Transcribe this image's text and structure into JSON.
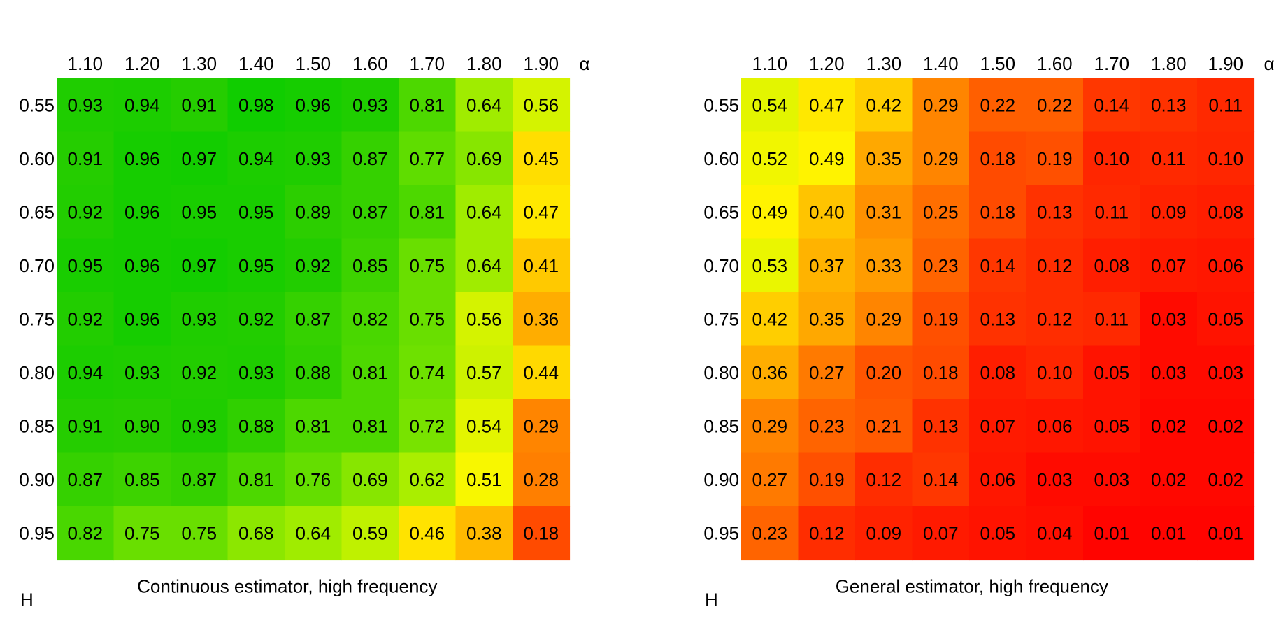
{
  "chart_data": [
    {
      "type": "heatmap",
      "title": "Continuous estimator, high frequency",
      "xlabel": "α",
      "ylabel": "H",
      "x": [
        "1.10",
        "1.20",
        "1.30",
        "1.40",
        "1.50",
        "1.60",
        "1.70",
        "1.80",
        "1.90"
      ],
      "y": [
        "0.55",
        "0.60",
        "0.65",
        "0.70",
        "0.75",
        "0.80",
        "0.85",
        "0.90",
        "0.95"
      ],
      "values": [
        [
          0.93,
          0.94,
          0.91,
          0.98,
          0.96,
          0.93,
          0.81,
          0.64,
          0.56
        ],
        [
          0.91,
          0.96,
          0.97,
          0.94,
          0.93,
          0.87,
          0.77,
          0.69,
          0.45
        ],
        [
          0.92,
          0.96,
          0.95,
          0.95,
          0.89,
          0.87,
          0.81,
          0.64,
          0.47
        ],
        [
          0.95,
          0.96,
          0.97,
          0.95,
          0.92,
          0.85,
          0.75,
          0.64,
          0.41
        ],
        [
          0.92,
          0.96,
          0.93,
          0.92,
          0.87,
          0.82,
          0.75,
          0.56,
          0.36
        ],
        [
          0.94,
          0.93,
          0.92,
          0.93,
          0.88,
          0.81,
          0.74,
          0.57,
          0.44
        ],
        [
          0.91,
          0.9,
          0.93,
          0.88,
          0.81,
          0.81,
          0.72,
          0.54,
          0.29
        ],
        [
          0.87,
          0.85,
          0.87,
          0.81,
          0.76,
          0.69,
          0.62,
          0.51,
          0.28
        ],
        [
          0.82,
          0.75,
          0.75,
          0.68,
          0.64,
          0.59,
          0.46,
          0.38,
          0.18
        ]
      ],
      "colormap": "red-yellow-green",
      "vlim": [
        0,
        1
      ],
      "grid": false,
      "legend": "none"
    },
    {
      "type": "heatmap",
      "title": "General estimator, high frequency",
      "xlabel": "α",
      "ylabel": "H",
      "x": [
        "1.10",
        "1.20",
        "1.30",
        "1.40",
        "1.50",
        "1.60",
        "1.70",
        "1.80",
        "1.90"
      ],
      "y": [
        "0.55",
        "0.60",
        "0.65",
        "0.70",
        "0.75",
        "0.80",
        "0.85",
        "0.90",
        "0.95"
      ],
      "values": [
        [
          0.54,
          0.47,
          0.42,
          0.29,
          0.22,
          0.22,
          0.14,
          0.13,
          0.11
        ],
        [
          0.52,
          0.49,
          0.35,
          0.29,
          0.18,
          0.19,
          0.1,
          0.11,
          0.1
        ],
        [
          0.49,
          0.4,
          0.31,
          0.25,
          0.18,
          0.13,
          0.11,
          0.09,
          0.08
        ],
        [
          0.53,
          0.37,
          0.33,
          0.23,
          0.14,
          0.12,
          0.08,
          0.07,
          0.06
        ],
        [
          0.42,
          0.35,
          0.29,
          0.19,
          0.13,
          0.12,
          0.11,
          0.03,
          0.05
        ],
        [
          0.36,
          0.27,
          0.2,
          0.18,
          0.08,
          0.1,
          0.05,
          0.03,
          0.03
        ],
        [
          0.29,
          0.23,
          0.21,
          0.13,
          0.07,
          0.06,
          0.05,
          0.02,
          0.02
        ],
        [
          0.27,
          0.19,
          0.12,
          0.14,
          0.06,
          0.03,
          0.03,
          0.02,
          0.02
        ],
        [
          0.23,
          0.12,
          0.09,
          0.07,
          0.05,
          0.04,
          0.01,
          0.01,
          0.01
        ]
      ],
      "colormap": "red-yellow-green",
      "vlim": [
        0,
        1
      ],
      "grid": false,
      "legend": "none"
    }
  ]
}
